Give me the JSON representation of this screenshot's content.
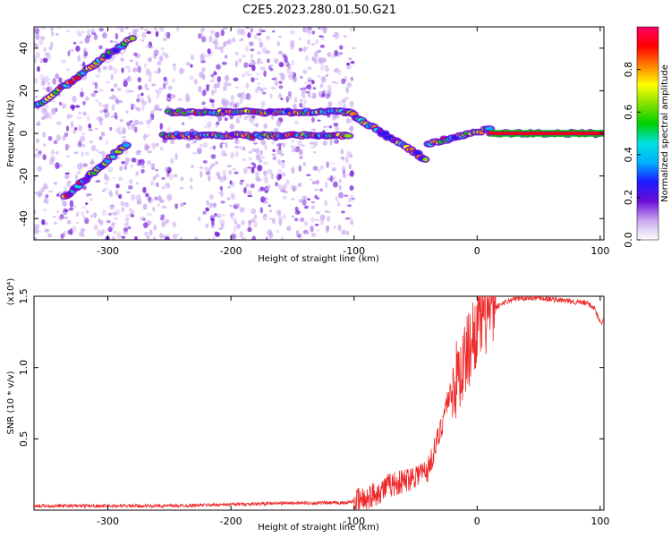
{
  "title": "C2E5.2023.280.01.50.G21",
  "chart_data": [
    {
      "type": "heatmap",
      "xlabel": "Height of straight line (km)",
      "ylabel": "Frequency (Hz)",
      "xlim": [
        -360,
        103
      ],
      "ylim": [
        -50,
        50
      ],
      "xticks": [
        -300,
        -200,
        -100,
        0,
        100
      ],
      "yticks": [
        -40,
        -20,
        0,
        20,
        40
      ],
      "colorbar": {
        "label": "Normalized spectral amplitude",
        "ticks": [
          0.0,
          0.2,
          0.4,
          0.6,
          0.8
        ],
        "range": [
          0,
          1
        ],
        "colors": [
          "#ffffff",
          "#c9a8f0",
          "#6a0dd6",
          "#1a1aff",
          "#00b0ff",
          "#00e0e0",
          "#00d000",
          "#80e000",
          "#ffff00",
          "#ff8000",
          "#ff0000",
          "#ff0066"
        ]
      },
      "features": [
        {
          "name": "rising branch",
          "x": [
            -358,
            -280
          ],
          "y": [
            13,
            45
          ]
        },
        {
          "name": "rising branch",
          "x": [
            -335,
            -285
          ],
          "y": [
            -30,
            -5
          ]
        },
        {
          "name": "band",
          "x": [
            -250,
            -105
          ],
          "y": [
            10,
            10
          ]
        },
        {
          "name": "band",
          "x": [
            -255,
            -105
          ],
          "y": [
            -1,
            -1
          ]
        },
        {
          "name": "descending trace",
          "x": [
            -105,
            -42
          ],
          "y": [
            10,
            -12
          ]
        },
        {
          "name": "trace",
          "x": [
            -40,
            10
          ],
          "y": [
            -5,
            2
          ]
        },
        {
          "name": "carrier",
          "x": [
            10,
            103
          ],
          "y": [
            0,
            0
          ]
        }
      ]
    },
    {
      "type": "line",
      "xlabel": "Height of straight line (km)",
      "ylabel": "SNR (10 * v/v)",
      "y_multiplier": "(x10⁴)",
      "xlim": [
        -360,
        103
      ],
      "ylim": [
        0,
        1.5
      ],
      "xticks": [
        -300,
        -200,
        -100,
        0,
        100
      ],
      "yticks": [
        0.5,
        1.0,
        1.5
      ],
      "series": [
        {
          "color": "#ee2a2a",
          "x": [
            -360,
            -300,
            -250,
            -200,
            -150,
            -110,
            -100,
            -90,
            -80,
            -70,
            -60,
            -50,
            -40,
            -30,
            -25,
            -20,
            -10,
            0,
            10,
            20,
            30,
            40,
            50,
            60,
            70,
            80,
            90,
            95,
            100,
            103
          ],
          "y": [
            0.03,
            0.03,
            0.03,
            0.04,
            0.05,
            0.05,
            0.06,
            0.08,
            0.13,
            0.18,
            0.2,
            0.25,
            0.28,
            0.55,
            0.75,
            0.85,
            1.05,
            1.3,
            1.38,
            1.45,
            1.48,
            1.49,
            1.49,
            1.48,
            1.47,
            1.46,
            1.45,
            1.42,
            1.32,
            1.33
          ]
        }
      ]
    }
  ]
}
